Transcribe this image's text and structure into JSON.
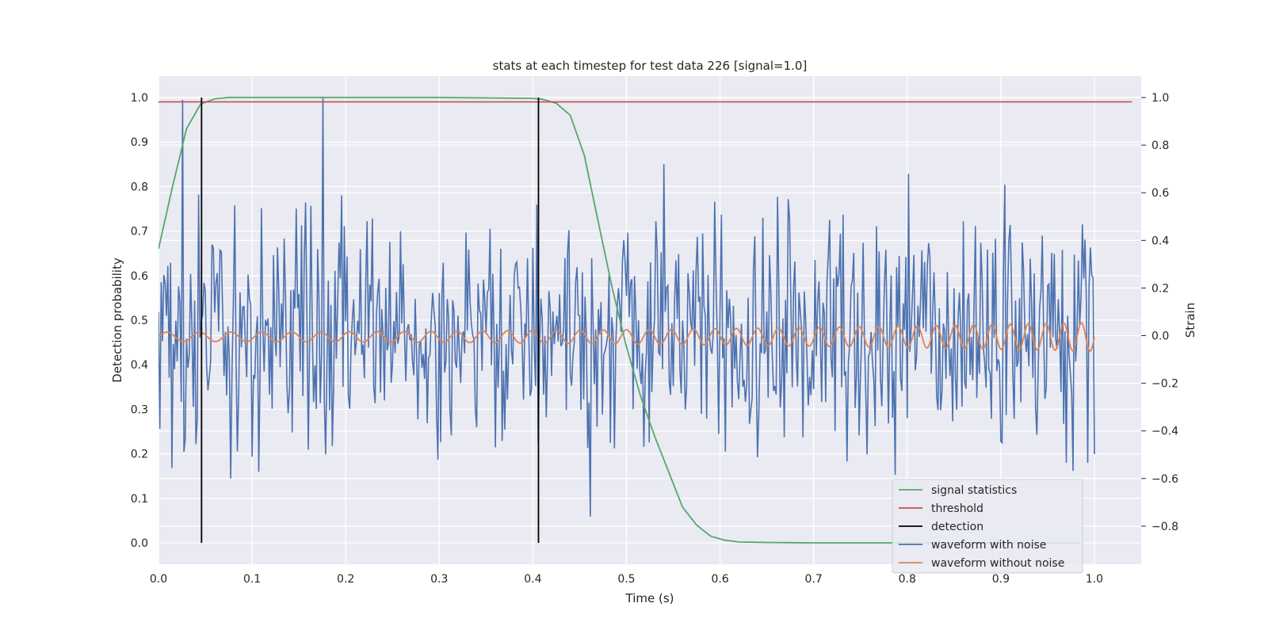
{
  "chart_data": {
    "type": "line",
    "title": "stats at each timestep for test data 226 [signal=1.0]",
    "xlabel": "Time (s)",
    "ylabel_left": "Detection probability",
    "ylabel_right": "Strain",
    "xlim": [
      0.0,
      1.05
    ],
    "ylim_left": [
      -0.048,
      1.048
    ],
    "ylim_right": [
      -0.96,
      1.09
    ],
    "x_ticks": [
      "0.0",
      "0.1",
      "0.2",
      "0.3",
      "0.4",
      "0.5",
      "0.6",
      "0.7",
      "0.8",
      "0.9",
      "1.0"
    ],
    "y_ticks_left": [
      "0.0",
      "0.1",
      "0.2",
      "0.3",
      "0.4",
      "0.5",
      "0.6",
      "0.7",
      "0.8",
      "0.9",
      "1.0"
    ],
    "y_ticks_right": [
      "−0.8",
      "−0.6",
      "−0.4",
      "−0.2",
      "0.0",
      "0.2",
      "0.4",
      "0.6",
      "0.8",
      "1.0"
    ],
    "grid": true,
    "legend_position": "lower-right",
    "series": [
      {
        "name": "signal statistics",
        "axis": "left",
        "color": "#55a868",
        "x": [
          0.0,
          0.015,
          0.03,
          0.045,
          0.06,
          0.075,
          0.1,
          0.2,
          0.3,
          0.4,
          0.41,
          0.425,
          0.44,
          0.455,
          0.47,
          0.485,
          0.5,
          0.515,
          0.53,
          0.545,
          0.56,
          0.575,
          0.59,
          0.605,
          0.62,
          0.65,
          0.7,
          0.8,
          0.9,
          0.985
        ],
        "y": [
          0.66,
          0.8,
          0.93,
          0.985,
          0.997,
          1.0,
          1.0,
          1.0,
          1.0,
          0.998,
          0.996,
          0.987,
          0.96,
          0.87,
          0.72,
          0.57,
          0.44,
          0.33,
          0.24,
          0.16,
          0.08,
          0.04,
          0.015,
          0.006,
          0.002,
          0.001,
          0.0,
          0.0,
          0.0,
          0.0
        ]
      },
      {
        "name": "threshold",
        "axis": "left",
        "color": "#c44e52",
        "x": [
          0.0,
          1.04
        ],
        "y": [
          0.99,
          0.99
        ]
      },
      {
        "name": "detection",
        "axis": "left",
        "color": "#000000",
        "segments": [
          {
            "x": 0.046,
            "y": [
              0.0,
              1.0
            ]
          },
          {
            "x": 0.406,
            "y": [
              0.0,
              1.0
            ]
          }
        ]
      },
      {
        "name": "waveform with noise",
        "axis": "right",
        "color": "#4c72b0",
        "x_range": [
          0.0,
          1.0
        ],
        "samples": 700,
        "amplitude_range": [
          -0.8,
          1.0
        ],
        "visible_peaks": [
          {
            "x": 0.026,
            "y": 0.99
          },
          {
            "x": 0.176,
            "y": 1.0
          },
          {
            "x": 0.54,
            "y": 0.72
          },
          {
            "x": 0.802,
            "y": 0.68
          },
          {
            "x": 0.462,
            "y": -0.76
          },
          {
            "x": 0.0765,
            "y": -0.6
          }
        ]
      },
      {
        "name": "waveform without noise",
        "axis": "right",
        "color": "#dd8452",
        "x_range": [
          0.0,
          1.0
        ],
        "amplitude_start": 0.02,
        "amplitude_end": 0.06,
        "cycles_visible": 41
      }
    ]
  }
}
